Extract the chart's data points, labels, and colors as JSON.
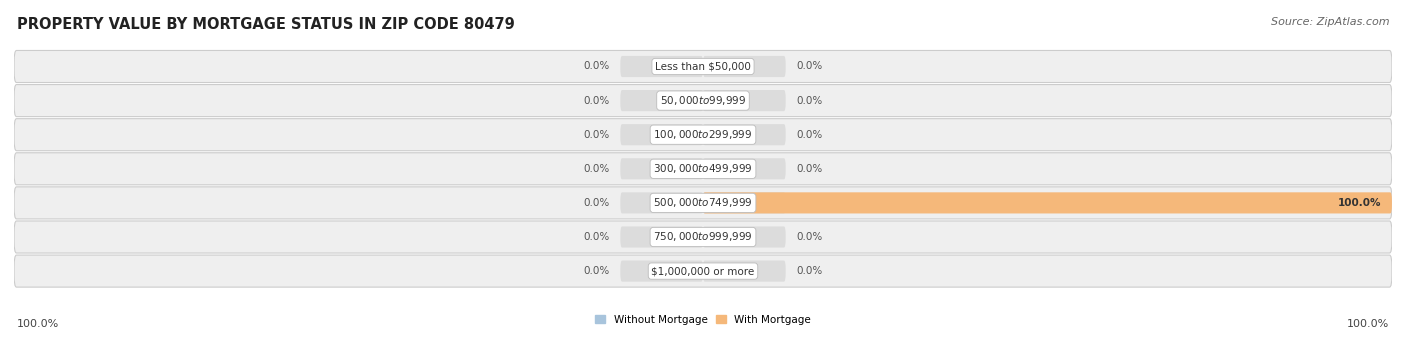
{
  "title": "PROPERTY VALUE BY MORTGAGE STATUS IN ZIP CODE 80479",
  "source": "Source: ZipAtlas.com",
  "categories": [
    "Less than $50,000",
    "$50,000 to $99,999",
    "$100,000 to $299,999",
    "$300,000 to $499,999",
    "$500,000 to $749,999",
    "$750,000 to $999,999",
    "$1,000,000 or more"
  ],
  "without_mortgage": [
    0.0,
    0.0,
    0.0,
    0.0,
    0.0,
    0.0,
    0.0
  ],
  "with_mortgage": [
    0.0,
    0.0,
    0.0,
    0.0,
    100.0,
    0.0,
    0.0
  ],
  "without_mortgage_color": "#a8c4dc",
  "with_mortgage_color": "#f5b87a",
  "without_mortgage_label": "Without Mortgage",
  "with_mortgage_label": "With Mortgage",
  "bar_bg_color": "#dcdcdc",
  "row_bg_color": "#efefef",
  "title_fontsize": 10.5,
  "source_fontsize": 8,
  "label_fontsize": 7.5,
  "category_fontsize": 7.5,
  "tick_fontsize": 8,
  "max_val": 100.0,
  "left_label": "100.0%",
  "right_label": "100.0%"
}
